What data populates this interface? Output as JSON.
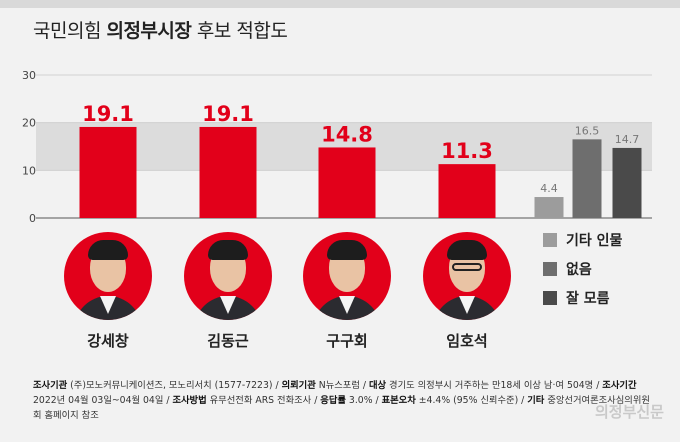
{
  "title": {
    "pre": "국민의힘 ",
    "strong": "의정부시장",
    "post": " 후보 적합도"
  },
  "chart_data": {
    "type": "bar",
    "ylim": [
      0,
      30
    ],
    "yticks": [
      0,
      10,
      20,
      30
    ],
    "candidates": [
      {
        "name": "강세창",
        "value": 19.1
      },
      {
        "name": "김동근",
        "value": 19.1
      },
      {
        "name": "구구회",
        "value": 14.8
      },
      {
        "name": "임호석",
        "value": 11.3
      }
    ],
    "others": [
      {
        "name": "기타 인물",
        "value": 4.4,
        "color": "#9c9c9c"
      },
      {
        "name": "없음",
        "value": 16.5,
        "color": "#6e6e6e"
      },
      {
        "name": "잘 모름",
        "value": 14.7,
        "color": "#4a4a4a"
      }
    ],
    "candidate_color": "#e2001a"
  },
  "notes": {
    "line1": [
      {
        "label": "조사기관",
        "text": " (주)모노커뮤니케이션즈, 모노리서치 (1577-7223) / "
      },
      {
        "label": "의뢰기관",
        "text": " N뉴스포럼 / "
      },
      {
        "label": "대상",
        "text": " 경기도 의정부시 거주하는 만18세 이상 남·여 504명 / "
      },
      {
        "label": "조사기간",
        "text": ""
      }
    ],
    "line2": [
      {
        "label": "",
        "text": "2022년 04월 03일~04월 04일 / "
      },
      {
        "label": "조사방법",
        "text": " 유무선전화 ARS 전화조사 / "
      },
      {
        "label": "응답률",
        "text": " 3.0% / "
      },
      {
        "label": "표본오차",
        "text": " ±4.4% (95% 신뢰수준) / "
      },
      {
        "label": "기타",
        "text": " 중앙선거여론조사심의위원"
      }
    ],
    "line3": "회 홈페이지 참조"
  },
  "brand": "의정부신문"
}
